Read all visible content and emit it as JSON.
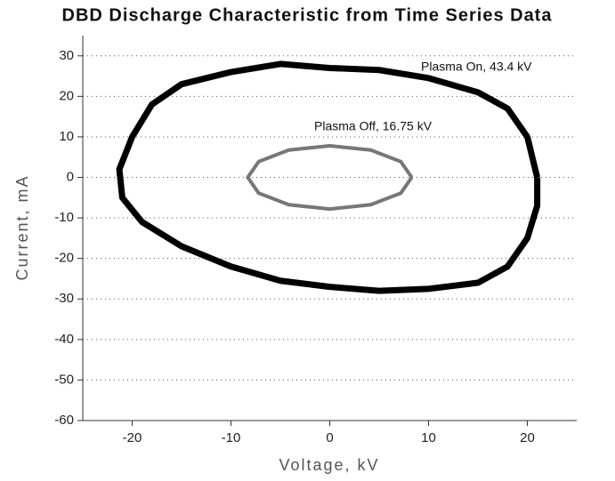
{
  "chart_data": {
    "type": "line",
    "title": "DBD Discharge Characteristic from Time Series Data",
    "xlabel": "Voltage, kV",
    "ylabel": "Current, mA",
    "xlim": [
      -25,
      25
    ],
    "ylim": [
      -60,
      35
    ],
    "xticks": [
      -20,
      -10,
      0,
      10,
      20
    ],
    "yticks": [
      -60,
      -50,
      -40,
      -30,
      -20,
      -10,
      0,
      10,
      20,
      30
    ],
    "grid": true,
    "series": [
      {
        "name": "Plasma On, 43.4 kV",
        "color": "#000000",
        "x": [
          21,
          20,
          18,
          15,
          10,
          5,
          0,
          -5,
          -10,
          -15,
          -18,
          -20,
          -21.3,
          -21,
          -19,
          -15,
          -10,
          -5,
          0,
          5,
          10,
          15,
          18,
          20,
          21,
          21
        ],
        "values": [
          0,
          10,
          17,
          21,
          24.5,
          26.5,
          27,
          28,
          26,
          23,
          18,
          10,
          2,
          -5,
          -11,
          -17,
          -22,
          -25.5,
          -27,
          -28,
          -27.5,
          -26,
          -22,
          -15,
          -7,
          0
        ]
      },
      {
        "name": "Plasma Off, 16.75 kV",
        "color": "#777777",
        "x": [
          8.3,
          7.19,
          4.15,
          0,
          -4.15,
          -7.19,
          -8.3,
          -7.19,
          -4.15,
          0,
          4.15,
          7.19,
          8.3
        ],
        "values": [
          0,
          3.9,
          6.75,
          7.8,
          6.75,
          3.9,
          0,
          -3.9,
          -6.75,
          -7.8,
          -6.75,
          -3.9,
          0
        ]
      }
    ]
  }
}
